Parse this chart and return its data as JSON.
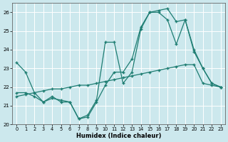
{
  "xlabel": "Humidex (Indice chaleur)",
  "bg_color": "#cce8ed",
  "line_color": "#1e7d72",
  "grid_color": "#ffffff",
  "xlim": [
    -0.5,
    23.5
  ],
  "ylim": [
    20,
    26.5
  ],
  "yticks": [
    20,
    21,
    22,
    23,
    24,
    25,
    26
  ],
  "xticks": [
    0,
    1,
    2,
    3,
    4,
    5,
    6,
    7,
    8,
    9,
    10,
    11,
    12,
    13,
    14,
    15,
    16,
    17,
    18,
    19,
    20,
    21,
    22,
    23
  ],
  "series": [
    {
      "x": [
        0,
        1,
        2,
        3,
        4,
        5,
        6,
        7,
        8,
        9,
        10,
        11,
        12,
        13,
        14,
        15,
        16,
        17,
        18,
        19,
        20,
        21,
        22,
        23
      ],
      "y": [
        23.3,
        22.8,
        21.7,
        21.2,
        21.5,
        21.2,
        21.2,
        20.3,
        20.4,
        21.2,
        22.1,
        22.8,
        22.8,
        23.5,
        25.2,
        26.0,
        26.1,
        26.2,
        25.5,
        25.6,
        23.9,
        23.0,
        22.2,
        22.0
      ]
    },
    {
      "x": [
        0,
        1,
        2,
        3,
        4,
        5,
        6,
        7,
        8,
        9,
        10,
        11,
        12,
        13,
        14,
        15,
        16,
        17,
        18,
        19,
        20,
        21,
        22,
        23
      ],
      "y": [
        21.5,
        21.6,
        21.7,
        21.8,
        21.9,
        21.9,
        22.0,
        22.1,
        22.1,
        22.2,
        22.3,
        22.4,
        22.5,
        22.6,
        22.7,
        22.8,
        22.9,
        23.0,
        23.1,
        23.2,
        23.2,
        22.2,
        22.1,
        22.0
      ]
    },
    {
      "x": [
        0,
        1,
        2,
        3,
        4,
        5,
        6,
        7,
        8,
        9,
        10,
        11,
        12,
        13,
        14,
        15,
        16,
        17,
        18,
        19,
        20,
        21,
        22,
        23
      ],
      "y": [
        21.7,
        21.7,
        21.5,
        21.2,
        21.4,
        21.3,
        21.2,
        20.3,
        20.5,
        21.3,
        24.4,
        24.4,
        22.2,
        22.8,
        25.1,
        26.0,
        26.0,
        25.6,
        24.3,
        25.6,
        24.0,
        23.0,
        22.2,
        22.0
      ]
    }
  ]
}
